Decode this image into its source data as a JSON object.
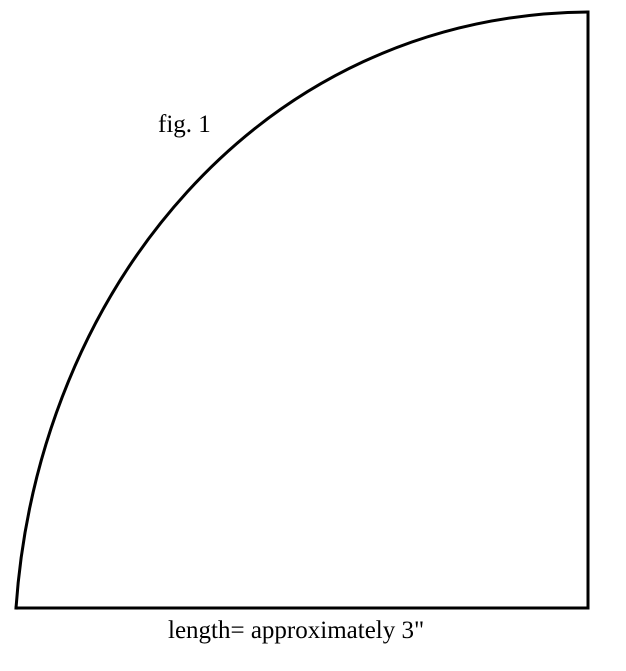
{
  "figure": {
    "label": "fig. 1",
    "caption": "length= approximately 3\"",
    "shape": "quarter-circle pattern",
    "stroke_color": "#000000",
    "background_color": "#ffffff"
  }
}
